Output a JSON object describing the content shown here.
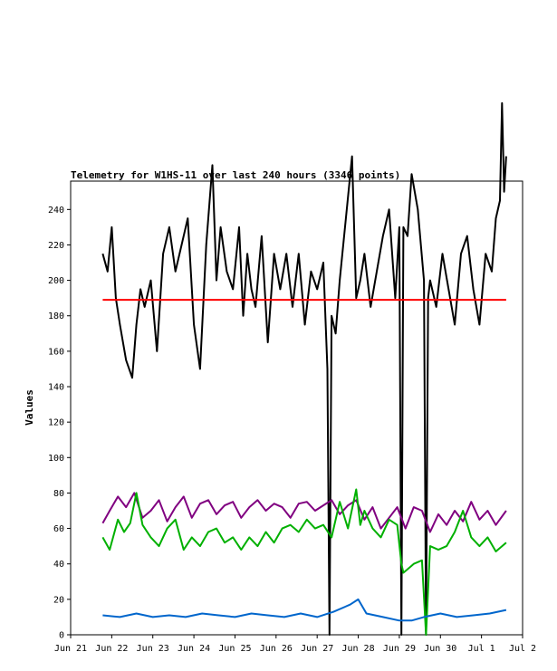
{
  "chart_data": {
    "type": "line",
    "title": "Telemetry for W1HS-11 over last 240 hours (3346 points)",
    "xlabel": "",
    "ylabel": "Values",
    "grid": false,
    "legend": "none",
    "xlim": [
      0,
      11
    ],
    "ylim": [
      0,
      256
    ],
    "x_ticks": [
      "Jun 21",
      "Jun 22",
      "Jun 23",
      "Jun 24",
      "Jun 25",
      "Jun 26",
      "Jun 27",
      "Jun 28",
      "Jun 29",
      "Jun 30",
      "Jul 1",
      "Jul 2"
    ],
    "y_ticks": [
      0,
      20,
      40,
      60,
      80,
      100,
      120,
      140,
      160,
      180,
      200,
      220,
      240
    ],
    "series": [
      {
        "color": "#000000",
        "x": [
          0.78,
          0.9,
          1.0,
          1.1,
          1.2,
          1.35,
          1.5,
          1.6,
          1.7,
          1.8,
          1.95,
          2.1,
          2.25,
          2.4,
          2.55,
          2.7,
          2.85,
          3.0,
          3.15,
          3.3,
          3.45,
          3.55,
          3.65,
          3.8,
          3.95,
          4.1,
          4.2,
          4.3,
          4.4,
          4.5,
          4.65,
          4.8,
          4.95,
          5.1,
          5.25,
          5.4,
          5.55,
          5.7,
          5.85,
          6.0,
          6.15,
          6.25,
          6.3,
          6.35,
          6.45,
          6.55,
          6.7,
          6.85,
          6.95,
          7.05,
          7.15,
          7.3,
          7.45,
          7.6,
          7.75,
          7.9,
          8.0,
          8.05,
          8.1,
          8.2,
          8.3,
          8.45,
          8.6,
          8.65,
          8.7,
          8.75,
          8.9,
          9.05,
          9.2,
          9.35,
          9.5,
          9.65,
          9.8,
          9.95,
          10.1,
          10.25,
          10.35,
          10.45,
          10.5,
          10.55,
          10.6
        ],
        "values": [
          215,
          205,
          230,
          190,
          175,
          155,
          145,
          175,
          195,
          185,
          200,
          160,
          215,
          230,
          205,
          220,
          235,
          175,
          150,
          220,
          265,
          200,
          230,
          205,
          195,
          230,
          180,
          215,
          195,
          185,
          225,
          165,
          215,
          195,
          215,
          185,
          215,
          175,
          205,
          195,
          210,
          150,
          0,
          180,
          170,
          200,
          235,
          270,
          190,
          200,
          215,
          185,
          205,
          225,
          240,
          190,
          230,
          0,
          230,
          225,
          260,
          240,
          200,
          0,
          190,
          200,
          185,
          215,
          195,
          175,
          215,
          225,
          195,
          175,
          215,
          205,
          235,
          245,
          300,
          250,
          270
        ]
      },
      {
        "color": "#ff0000",
        "x": [
          0.78,
          1.5,
          2.5,
          3.5,
          4.5,
          5.5,
          6.5,
          7.5,
          8.5,
          9.5,
          10.6
        ],
        "values": [
          189,
          189,
          189,
          189,
          189,
          189,
          189,
          189,
          189,
          189,
          189
        ]
      },
      {
        "color": "#800080",
        "x": [
          0.78,
          0.95,
          1.15,
          1.35,
          1.55,
          1.75,
          1.95,
          2.15,
          2.35,
          2.55,
          2.75,
          2.95,
          3.15,
          3.35,
          3.55,
          3.75,
          3.95,
          4.15,
          4.35,
          4.55,
          4.75,
          4.95,
          5.15,
          5.35,
          5.55,
          5.75,
          5.95,
          6.15,
          6.35,
          6.55,
          6.75,
          6.95,
          7.15,
          7.35,
          7.55,
          7.75,
          7.95,
          8.15,
          8.35,
          8.55,
          8.75,
          8.95,
          9.15,
          9.35,
          9.55,
          9.75,
          9.95,
          10.15,
          10.35,
          10.6
        ],
        "values": [
          63,
          70,
          78,
          72,
          80,
          66,
          70,
          76,
          64,
          72,
          78,
          66,
          74,
          76,
          68,
          73,
          75,
          66,
          72,
          76,
          70,
          74,
          72,
          66,
          74,
          75,
          70,
          73,
          76,
          68,
          73,
          76,
          65,
          72,
          60,
          66,
          72,
          60,
          72,
          70,
          58,
          68,
          62,
          70,
          64,
          75,
          65,
          70,
          62,
          70
        ]
      },
      {
        "color": "#00b000",
        "x": [
          0.78,
          0.95,
          1.15,
          1.3,
          1.45,
          1.6,
          1.75,
          1.95,
          2.15,
          2.35,
          2.55,
          2.75,
          2.95,
          3.15,
          3.35,
          3.55,
          3.75,
          3.95,
          4.15,
          4.35,
          4.55,
          4.75,
          4.95,
          5.15,
          5.35,
          5.55,
          5.75,
          5.95,
          6.15,
          6.35,
          6.55,
          6.75,
          6.95,
          7.05,
          7.15,
          7.35,
          7.55,
          7.75,
          7.95,
          8.05,
          8.1,
          8.2,
          8.35,
          8.55,
          8.65,
          8.75,
          8.95,
          9.15,
          9.35,
          9.55,
          9.75,
          9.95,
          10.15,
          10.35,
          10.6
        ],
        "values": [
          55,
          48,
          65,
          58,
          63,
          80,
          62,
          55,
          50,
          60,
          65,
          48,
          55,
          50,
          58,
          60,
          52,
          55,
          48,
          55,
          50,
          58,
          52,
          60,
          62,
          58,
          65,
          60,
          62,
          55,
          75,
          60,
          82,
          62,
          70,
          60,
          55,
          65,
          62,
          40,
          35,
          37,
          40,
          42,
          0,
          50,
          48,
          50,
          58,
          70,
          55,
          50,
          55,
          47,
          52
        ]
      },
      {
        "color": "#0066cc",
        "x": [
          0.78,
          1.2,
          1.6,
          2.0,
          2.4,
          2.8,
          3.2,
          3.6,
          4.0,
          4.4,
          4.8,
          5.2,
          5.6,
          6.0,
          6.4,
          6.8,
          7.0,
          7.2,
          7.6,
          8.0,
          8.3,
          8.6,
          9.0,
          9.4,
          9.8,
          10.2,
          10.6
        ],
        "values": [
          11,
          10,
          12,
          10,
          11,
          10,
          12,
          11,
          10,
          12,
          11,
          10,
          12,
          10,
          13,
          17,
          20,
          12,
          10,
          8,
          8,
          10,
          12,
          10,
          11,
          12,
          14
        ]
      }
    ]
  }
}
